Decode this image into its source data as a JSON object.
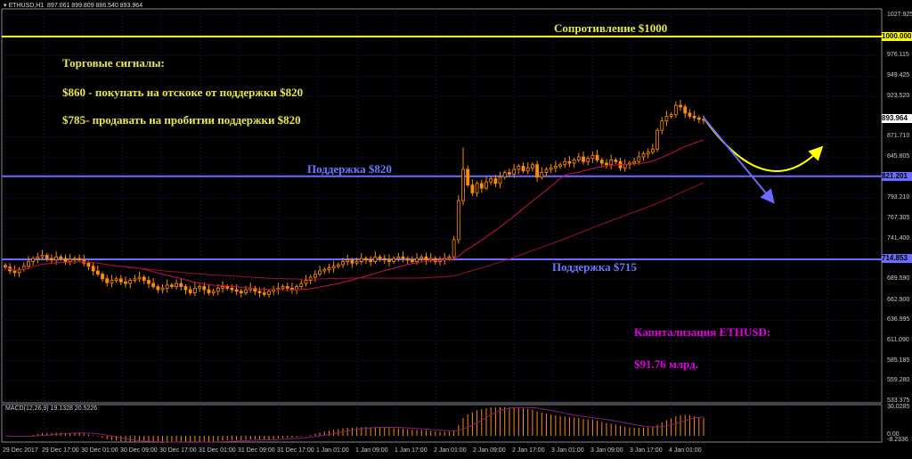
{
  "header": {
    "symbol": "ETHUSD,H1",
    "ohlc": "897.061 899.809 886.540 893.964"
  },
  "annotations": {
    "resistance": "Сопротивление $1000",
    "signals_title": "Торговые сигналы:",
    "signal_buy": "$860 - покупать на отскоке от поддержки $820",
    "signal_sell": "$785- продавать на пробитии поддержки $820",
    "support_820": "Поддержка $820",
    "support_715": "Поддержка $715",
    "cap_label": "Капитализация ETHUSD:",
    "cap_value": "$91.76 млрд."
  },
  "price_axis": [
    "1027.925",
    "976.115",
    "949.425",
    "923.520",
    "871.710",
    "845.805",
    "793.210",
    "767.305",
    "741.400",
    "689.590",
    "662.900",
    "636.995",
    "611.090",
    "585.185",
    "559.280",
    "533.375"
  ],
  "price_tags": {
    "resistance": "1000.000",
    "current": "893.964",
    "support_820": "821.201",
    "support_715": "714.853"
  },
  "macd": {
    "label": "MACD(12,26,9) 19.1328 20.5226",
    "axis_top": "30.0285",
    "axis_zero": "0.00",
    "axis_bottom": "-8.2336"
  },
  "time_axis": [
    "29 Dec 2017",
    "29 Dec 17:00",
    "30 Dec 01:00",
    "30 Dec 09:00",
    "30 Dec 17:00",
    "31 Dec 01:00",
    "31 Dec 09:00",
    "31 Dec 17:00",
    "1 Jan 01:00",
    "1 Jan 09:00",
    "1 Jan 17:00",
    "2 Jan 01:00",
    "2 Jan 09:00",
    "2 Jan 17:00",
    "3 Jan 01:00",
    "3 Jan 09:00",
    "3 Jan 17:00",
    "4 Jan 01:00"
  ],
  "colors": {
    "resistance": "#ffff00",
    "support": "#6b6bff",
    "text_yellow": "#e8e84a",
    "text_magenta": "#e000e0",
    "bull": "#ff8c00",
    "ma_fast": "#d0104a",
    "ma_slow": "#a0102a"
  },
  "chart_data": {
    "type": "candlestick",
    "timeframe": "H1",
    "closes": [
      705,
      700,
      698,
      702,
      706,
      712,
      716,
      718,
      720,
      716,
      714,
      718,
      716,
      712,
      715,
      716,
      714,
      710,
      706,
      700,
      696,
      690,
      685,
      688,
      690,
      686,
      684,
      688,
      690,
      692,
      688,
      684,
      680,
      676,
      678,
      682,
      680,
      684,
      680,
      676,
      672,
      678,
      680,
      676,
      672,
      674,
      678,
      680,
      678,
      676,
      674,
      672,
      676,
      678,
      674,
      672,
      670,
      674,
      676,
      678,
      680,
      678,
      676,
      680,
      684,
      688,
      692,
      696,
      700,
      702,
      704,
      706,
      708,
      712,
      714,
      710,
      712,
      716,
      714,
      712,
      718,
      716,
      714,
      712,
      716,
      718,
      716,
      714,
      712,
      716,
      718,
      714,
      716,
      712,
      714,
      716,
      718,
      740,
      790,
      830,
      810,
      800,
      812,
      806,
      814,
      818,
      812,
      820,
      826,
      824,
      830,
      834,
      828,
      832,
      836,
      820,
      826,
      830,
      832,
      834,
      836,
      840,
      838,
      842,
      846,
      840,
      844,
      848,
      842,
      838,
      836,
      842,
      840,
      832,
      836,
      838,
      840,
      846,
      850,
      852,
      856,
      880,
      892,
      898,
      900,
      912,
      910,
      902,
      898,
      896,
      894,
      894
    ],
    "levels": {
      "resistance": 1000,
      "support_820": 821.201,
      "support_715": 714.853
    },
    "ylim": [
      533.375,
      1040
    ]
  }
}
